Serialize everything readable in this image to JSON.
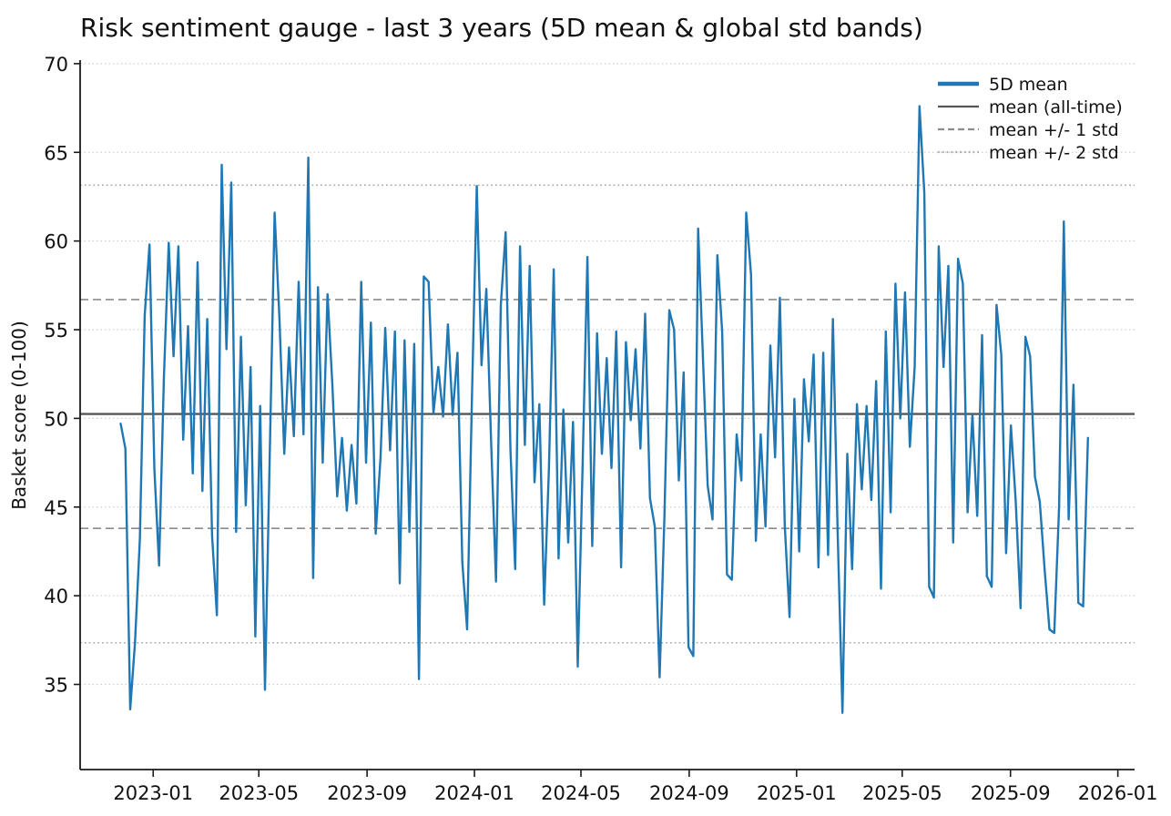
{
  "chart_data": {
    "type": "line",
    "title": "Risk sentiment gauge - last 3 years (5D mean & global std bands)",
    "ylabel": "Basket score (0-100)",
    "ylim": [
      30.2,
      70.2
    ],
    "yticks": [
      35,
      40,
      45,
      50,
      55,
      60,
      65,
      70
    ],
    "xlim": [
      "2022-10-10",
      "2026-01-20"
    ],
    "xticks": [
      {
        "date": "2023-01-01",
        "label": "2023-01"
      },
      {
        "date": "2023-05-01",
        "label": "2023-05"
      },
      {
        "date": "2023-09-01",
        "label": "2023-09"
      },
      {
        "date": "2024-01-01",
        "label": "2024-01"
      },
      {
        "date": "2024-05-01",
        "label": "2024-05"
      },
      {
        "date": "2024-09-01",
        "label": "2024-09"
      },
      {
        "date": "2025-01-01",
        "label": "2025-01"
      },
      {
        "date": "2025-05-01",
        "label": "2025-05"
      },
      {
        "date": "2025-09-01",
        "label": "2025-09"
      },
      {
        "date": "2026-01-01",
        "label": "2026-01"
      }
    ],
    "grid": {
      "axis": "y",
      "style": "dotted",
      "color": "#cfcfcf"
    },
    "stats": {
      "mean_all_time": 50.25,
      "std_all_time": 6.45
    },
    "reference_lines": [
      {
        "name": "mean (all-time)",
        "value": 50.25,
        "style": "solid",
        "color": "#565656"
      },
      {
        "name": "mean +1 std",
        "value": 56.7,
        "style": "dashed",
        "color": "#8c8c8c"
      },
      {
        "name": "mean -1 std",
        "value": 43.8,
        "style": "dashed",
        "color": "#8c8c8c"
      },
      {
        "name": "mean +2 std",
        "value": 63.15,
        "style": "dotted",
        "color": "#adadad"
      },
      {
        "name": "mean -2 std",
        "value": 37.35,
        "style": "dotted",
        "color": "#adadad"
      }
    ],
    "legend": {
      "position": "upper right",
      "frame": false,
      "entries": [
        {
          "label": "5D mean",
          "style": "solid-thick",
          "color": "#1f77b4"
        },
        {
          "label": "mean (all-time)",
          "style": "solid",
          "color": "#565656"
        },
        {
          "label": "mean +/- 1 std",
          "style": "dashed",
          "color": "#8c8c8c"
        },
        {
          "label": "mean +/- 2 std",
          "style": "dotted",
          "color": "#adadad"
        }
      ]
    },
    "series": [
      {
        "name": "5D mean",
        "color": "#1f77b4",
        "start_date": "2022-11-25",
        "end_date": "2025-11-28",
        "values": [
          49.7,
          48.3,
          33.6,
          37.4,
          43.2,
          55.8,
          59.8,
          47.2,
          41.7,
          52.3,
          59.9,
          53.5,
          59.7,
          48.8,
          55.2,
          46.9,
          58.8,
          45.9,
          55.6,
          43.4,
          38.9,
          64.3,
          53.9,
          63.3,
          43.6,
          54.6,
          45.1,
          52.9,
          37.7,
          50.7,
          34.7,
          48.1,
          61.6,
          55.6,
          48.0,
          54.0,
          49.0,
          57.7,
          49.1,
          64.7,
          41.0,
          57.4,
          47.5,
          57.0,
          51.9,
          45.6,
          48.9,
          44.8,
          48.5,
          45.2,
          57.7,
          47.5,
          55.4,
          43.5,
          47.8,
          55.1,
          48.2,
          54.9,
          40.7,
          54.4,
          43.6,
          54.2,
          35.3,
          58.0,
          57.7,
          50.3,
          52.9,
          50.1,
          55.3,
          50.2,
          53.7,
          41.9,
          38.1,
          51.2,
          63.1,
          53.0,
          57.3,
          48.6,
          40.8,
          56.4,
          60.5,
          48.2,
          41.5,
          59.7,
          48.5,
          58.6,
          46.4,
          50.8,
          39.5,
          47.1,
          58.4,
          42.1,
          50.5,
          43.0,
          49.8,
          36.0,
          47.3,
          59.1,
          42.8,
          54.8,
          48.0,
          53.4,
          47.2,
          54.9,
          41.6,
          54.3,
          49.9,
          53.9,
          48.3,
          55.9,
          45.5,
          43.9,
          35.4,
          44.5,
          56.1,
          55.0,
          46.5,
          52.6,
          37.1,
          36.6,
          60.7,
          53.4,
          46.2,
          44.3,
          59.2,
          54.9,
          41.2,
          40.9,
          49.1,
          46.5,
          61.6,
          58.1,
          43.1,
          49.1,
          43.9,
          54.1,
          47.8,
          56.8,
          44.0,
          38.8,
          51.1,
          42.5,
          52.2,
          48.7,
          53.6,
          41.6,
          53.7,
          42.3,
          55.6,
          43.6,
          33.4,
          48.0,
          41.5,
          50.8,
          46.0,
          50.7,
          45.4,
          52.1,
          40.4,
          54.9,
          44.7,
          57.6,
          50.0,
          57.1,
          48.4,
          52.9,
          67.6,
          62.7,
          40.5,
          39.9,
          59.7,
          52.9,
          58.6,
          43.0,
          59.0,
          57.6,
          44.7,
          50.2,
          44.5,
          54.7,
          41.1,
          40.5,
          56.4,
          53.6,
          42.4,
          49.6,
          45.3,
          39.3,
          54.6,
          53.5,
          46.7,
          45.3,
          41.5,
          38.1,
          37.9,
          45.0,
          61.1,
          44.3,
          51.9,
          39.6,
          39.4,
          48.9
        ]
      }
    ]
  }
}
